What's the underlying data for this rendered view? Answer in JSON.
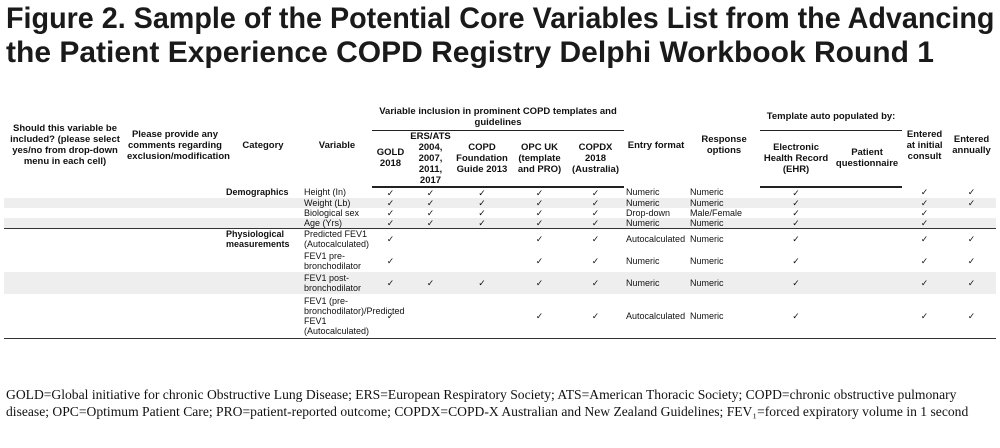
{
  "title_lines": [
    "Figure 2. Sample of the Potential Core Variables List from the Advancing",
    "the Patient Experience COPD Registry Delphi Workbook Round 1"
  ],
  "table": {
    "group_headers": [
      "Variable inclusion in prominent COPD templates and guidelines",
      "Template auto populated by:"
    ],
    "columns": [
      "Should this variable be included? (please select yes/no from drop-down menu in each cell)",
      "Please provide any comments regarding exclusion/modification",
      "Category",
      "Variable",
      "GOLD 2018",
      "ERS/ATS 2004, 2007, 2011, 2017",
      "COPD Foundation Guide 2013",
      "OPC UK (template and PRO)",
      "COPDX 2018 (Australia)",
      "Entry format",
      "Response options",
      "Electronic Health Record (EHR)",
      "Patient questionnaire",
      "Entered at initial consult",
      "Entered annually"
    ],
    "rows": [
      [
        null,
        null,
        "Demographics",
        "Height (In)",
        "✓",
        "✓",
        "✓",
        "✓",
        "✓",
        "Numeric",
        "Numeric",
        "✓",
        null,
        "✓",
        "✓"
      ],
      [
        null,
        null,
        null,
        "Weight (Lb)",
        "✓",
        "✓",
        "✓",
        "✓",
        "✓",
        "Numeric",
        "Numeric",
        "✓",
        null,
        "✓",
        "✓"
      ],
      [
        null,
        null,
        null,
        "Biological sex",
        "✓",
        "✓",
        "✓",
        "✓",
        "✓",
        "Drop-down",
        "Male/Female",
        "✓",
        null,
        "✓",
        null
      ],
      [
        null,
        null,
        null,
        "Age (Yrs)",
        "✓",
        "✓",
        "✓",
        "✓",
        "✓",
        "Numeric",
        "Numeric",
        "✓",
        null,
        "✓",
        null
      ],
      [
        null,
        null,
        "Physiological measurements",
        "Predicted FEV1 (Autocalculated)",
        "✓",
        null,
        null,
        "✓",
        "✓",
        "Autocalculated",
        "Numeric",
        "✓",
        null,
        "✓",
        "✓"
      ],
      [
        null,
        null,
        null,
        "FEV1 pre-bronchodilator",
        "✓",
        null,
        null,
        "✓",
        "✓",
        "Numeric",
        "Numeric",
        "✓",
        null,
        "✓",
        "✓"
      ],
      [
        null,
        null,
        null,
        "FEV1 post-bronchodilator",
        "✓",
        "✓",
        "✓",
        "✓",
        "✓",
        "Numeric",
        "Numeric",
        "✓",
        null,
        "✓",
        "✓"
      ],
      [
        null,
        null,
        null,
        "FEV1 (pre-bronchodilator)/Predicted FEV1 (Autocalculated)",
        "✓",
        null,
        null,
        "✓",
        "✓",
        "Autocalculated",
        "Numeric",
        "✓",
        null,
        "✓",
        "✓"
      ]
    ]
  },
  "footnote": "GOLD=Global initiative for chronic Obstructive Lung Disease; ERS=European Respiratory Society; ATS=American Thoracic Society; COPD=chronic obstructive pulmonary disease; OPC=Optimum Patient Care; PRO=patient-reported outcome; COPDX=COPD-X Australian and New Zealand Guidelines; FEV₁=forced expiratory volume in 1 second"
}
